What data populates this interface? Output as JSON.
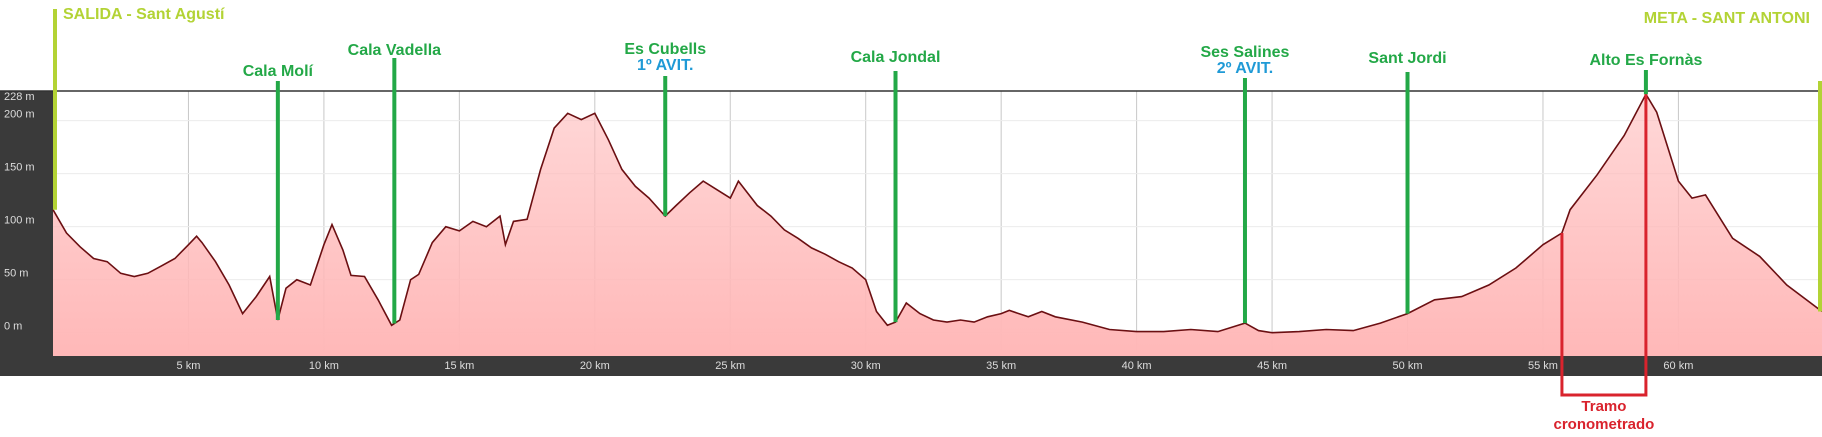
{
  "chart_data": {
    "type": "area",
    "x": [
      0,
      0.5,
      1,
      1.5,
      2,
      2.5,
      3,
      3.5,
      4,
      4.5,
      5,
      5.3,
      5.5,
      6,
      6.5,
      7,
      7.5,
      8,
      8.3,
      8.6,
      9,
      9.5,
      10,
      10.3,
      10.7,
      11,
      11.5,
      12,
      12.5,
      12.8,
      13.2,
      13.5,
      14,
      14.5,
      15,
      15.5,
      16,
      16.5,
      16.7,
      17,
      17.5,
      18,
      18.5,
      19,
      19.5,
      20,
      20.5,
      21,
      21.5,
      22,
      22.6,
      23,
      23.5,
      24,
      24.5,
      25,
      25.3,
      26,
      26.5,
      27,
      27.5,
      28,
      28.5,
      29,
      29.5,
      30,
      30.4,
      30.8,
      31.1,
      31.5,
      32,
      32.5,
      33,
      33.5,
      34,
      34.5,
      35,
      35.3,
      36,
      36.5,
      37,
      38,
      39,
      40,
      41,
      42,
      43,
      44,
      44.5,
      45,
      46,
      47,
      48,
      49,
      50,
      51,
      52,
      53,
      54,
      55,
      55.7,
      56,
      57,
      58,
      58.8,
      59.2,
      60,
      60.5,
      61,
      62,
      63,
      64,
      65.3
    ],
    "series": [
      {
        "color": "#6b0f12",
        "fill": "#ffb8b8",
        "values": [
          116,
          94,
          81,
          70,
          67,
          56,
          53,
          56,
          63,
          70,
          83,
          91,
          85,
          67,
          45,
          18,
          34,
          53,
          12,
          42,
          50,
          45,
          83,
          102,
          78,
          54,
          53,
          31,
          7,
          12,
          50,
          55,
          85,
          100,
          96,
          105,
          100,
          110,
          83,
          105,
          107,
          154,
          193,
          207,
          201,
          207,
          182,
          154,
          138,
          127,
          110,
          120,
          132,
          143,
          135,
          127,
          143,
          120,
          110,
          97,
          89,
          80,
          74,
          67,
          61,
          50,
          20,
          7,
          10,
          28,
          18,
          12,
          10,
          12,
          10,
          15,
          18,
          21,
          15,
          20,
          15,
          10,
          3,
          1,
          1,
          3,
          1,
          9,
          2,
          0,
          1,
          3,
          2,
          9,
          18,
          31,
          34,
          45,
          61,
          83,
          94,
          116,
          149,
          186,
          225,
          208,
          143,
          127,
          130,
          89,
          72,
          45,
          20
        ]
      }
    ],
    "xlim": [
      0,
      65.3
    ],
    "ylim": [
      -22,
      228
    ],
    "xticks": [
      {
        "value": 5,
        "label": "5 km"
      },
      {
        "value": 10,
        "label": "10 km"
      },
      {
        "value": 15,
        "label": "15 km"
      },
      {
        "value": 20,
        "label": "20 km"
      },
      {
        "value": 25,
        "label": "25 km"
      },
      {
        "value": 30,
        "label": "30 km"
      },
      {
        "value": 35,
        "label": "35 km"
      },
      {
        "value": 40,
        "label": "40 km"
      },
      {
        "value": 45,
        "label": "45 km"
      },
      {
        "value": 50,
        "label": "50 km"
      },
      {
        "value": 55,
        "label": "55 km"
      },
      {
        "value": 60,
        "label": "60 km"
      }
    ],
    "yticks": [
      {
        "value": 0,
        "label": "0 m"
      },
      {
        "value": 50,
        "label": "50 m"
      },
      {
        "value": 100,
        "label": "100 m"
      },
      {
        "value": 150,
        "label": "150 m"
      },
      {
        "value": 200,
        "label": "200 m"
      },
      {
        "value": 228,
        "label": "228 m"
      }
    ],
    "grid": true,
    "waypoints": [
      {
        "name": "SALIDA - Sant Agustí",
        "km": 0,
        "color": "#b3d335"
      },
      {
        "name": "Cala Molí",
        "km": 8.3,
        "color": "#23a847"
      },
      {
        "name": "Cala Vadella",
        "km": 12.6,
        "color": "#23a847"
      },
      {
        "name": "Es Cubells",
        "sub": "1º AVIT.",
        "km": 22.6,
        "color": "#23a847",
        "sub_color": "#1f9ad6"
      },
      {
        "name": "Cala Jondal",
        "km": 31.1,
        "color": "#23a847"
      },
      {
        "name": "Ses Salines",
        "sub": "2º AVIT.",
        "km": 44,
        "color": "#23a847",
        "sub_color": "#1f9ad6"
      },
      {
        "name": "Sant Jordi",
        "km": 50,
        "color": "#23a847"
      },
      {
        "name": "Alto Es Fornàs",
        "km": 58.8,
        "color": "#23a847"
      },
      {
        "name": "META - SANT ANTONI",
        "km": 65.3,
        "color": "#b3d335"
      }
    ],
    "segment": {
      "label": [
        "Tramo",
        "cronometrado"
      ],
      "start_km": 55.7,
      "end_km": 58.8,
      "color": "#d9232d"
    }
  }
}
